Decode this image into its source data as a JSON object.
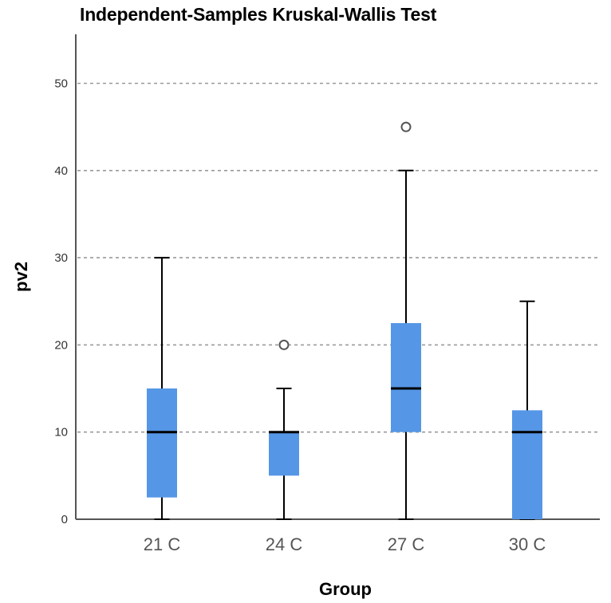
{
  "chart_data": {
    "type": "boxplot",
    "title": "Independent-Samples Kruskal-Wallis Test",
    "xlabel": "Group",
    "ylabel": "pv2",
    "ylim": [
      0,
      55
    ],
    "yticks": [
      0,
      10,
      20,
      30,
      40,
      50
    ],
    "grid": true,
    "categories": [
      "21 C",
      "24 C",
      "27 C",
      "30 C"
    ],
    "boxes": [
      {
        "category": "21 C",
        "whisker_low": 0,
        "q1": 2.5,
        "median": 10,
        "q3": 15,
        "whisker_high": 30,
        "outliers": []
      },
      {
        "category": "24 C",
        "whisker_low": 0,
        "q1": 5,
        "median": 10,
        "q3": 10,
        "whisker_high": 15,
        "outliers": [
          20
        ]
      },
      {
        "category": "27 C",
        "whisker_low": 0,
        "q1": 10,
        "median": 15,
        "q3": 22.5,
        "whisker_high": 40,
        "outliers": [
          45
        ]
      },
      {
        "category": "30 C",
        "whisker_low": 0,
        "q1": 0,
        "median": 10,
        "q3": 12.5,
        "whisker_high": 25,
        "outliers": []
      }
    ],
    "colors": {
      "box": "#5596e6",
      "median": "#000000",
      "grid": "#9a9a9a",
      "axis": "#555555"
    }
  }
}
